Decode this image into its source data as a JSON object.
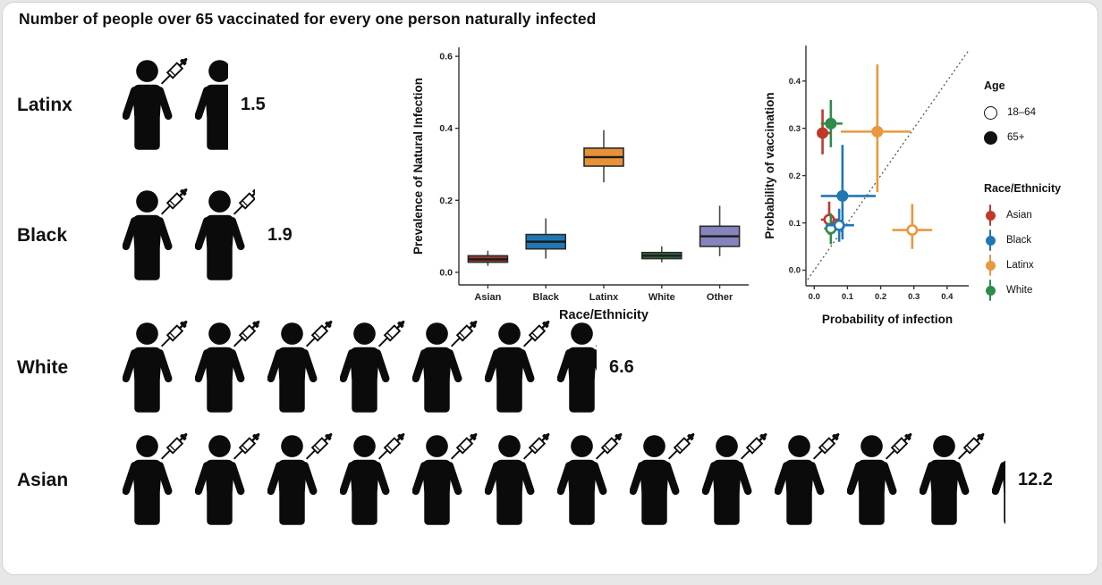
{
  "title": "Number of people over 65 vaccinated for every one person naturally infected",
  "pictogram": {
    "rows": [
      {
        "label": "Latinx",
        "value": "1.5",
        "count": 1.5
      },
      {
        "label": "Black",
        "value": "1.9",
        "count": 1.9
      },
      {
        "label": "White",
        "value": "6.6",
        "count": 6.6
      },
      {
        "label": "Asian",
        "value": "12.2",
        "count": 12.2
      }
    ]
  },
  "colors": {
    "box": {
      "Asian": "#963c2c",
      "Black": "#2077b4",
      "Latinx": "#e89138",
      "White": "#2e6b40",
      "Other": "#8784bd"
    },
    "scatter": {
      "Asian": "#c0392b",
      "Black": "#2077b4",
      "Latinx": "#e9983f",
      "White": "#2e8b4a"
    },
    "axis": "#333333",
    "whisker": "#4a4a4a",
    "identity_line": "#555555"
  },
  "chart_data": [
    {
      "type": "box",
      "title": "",
      "xlabel": "Race/Ethnicity",
      "ylabel": "Prevalence of Natural Infection",
      "ylim": [
        0,
        0.6
      ],
      "yticks": [
        0.0,
        0.2,
        0.4,
        0.6
      ],
      "categories": [
        "Asian",
        "Black",
        "Latinx",
        "White",
        "Other"
      ],
      "boxes": [
        {
          "category": "Asian",
          "whisker_low": 0.018,
          "q1": 0.028,
          "median": 0.036,
          "q3": 0.046,
          "whisker_high": 0.06
        },
        {
          "category": "Black",
          "whisker_low": 0.038,
          "q1": 0.065,
          "median": 0.085,
          "q3": 0.105,
          "whisker_high": 0.15
        },
        {
          "category": "Latinx",
          "whisker_low": 0.25,
          "q1": 0.295,
          "median": 0.32,
          "q3": 0.345,
          "whisker_high": 0.395
        },
        {
          "category": "White",
          "whisker_low": 0.028,
          "q1": 0.038,
          "median": 0.046,
          "q3": 0.055,
          "whisker_high": 0.072
        },
        {
          "category": "Other",
          "whisker_low": 0.045,
          "q1": 0.072,
          "median": 0.1,
          "q3": 0.128,
          "whisker_high": 0.185
        }
      ]
    },
    {
      "type": "scatter",
      "title": "",
      "xlabel": "Probability of infection",
      "ylabel": "Probability of vaccination",
      "xticks": [
        0.0,
        0.1,
        0.2,
        0.3,
        0.4
      ],
      "yticks": [
        0.0,
        0.1,
        0.2,
        0.3,
        0.4
      ],
      "identity_line": true,
      "points": [
        {
          "race": "Asian",
          "age": "65+",
          "filled": true,
          "x": 0.025,
          "y": 0.29,
          "xlo": 0.01,
          "xhi": 0.05,
          "ylo": 0.245,
          "yhi": 0.34
        },
        {
          "race": "White",
          "age": "65+",
          "filled": true,
          "x": 0.05,
          "y": 0.31,
          "xlo": 0.02,
          "xhi": 0.085,
          "ylo": 0.26,
          "yhi": 0.36
        },
        {
          "race": "Latinx",
          "age": "65+",
          "filled": true,
          "x": 0.19,
          "y": 0.293,
          "xlo": 0.08,
          "xhi": 0.29,
          "ylo": 0.165,
          "yhi": 0.435
        },
        {
          "race": "Black",
          "age": "65+",
          "filled": true,
          "x": 0.085,
          "y": 0.157,
          "xlo": 0.02,
          "xhi": 0.185,
          "ylo": 0.065,
          "yhi": 0.265
        },
        {
          "race": "Asian",
          "age": "18-64",
          "filled": false,
          "x": 0.045,
          "y": 0.107,
          "xlo": 0.02,
          "xhi": 0.075,
          "ylo": 0.075,
          "yhi": 0.145
        },
        {
          "race": "White",
          "age": "18-64",
          "filled": false,
          "x": 0.05,
          "y": 0.088,
          "xlo": 0.03,
          "xhi": 0.075,
          "ylo": 0.055,
          "yhi": 0.12
        },
        {
          "race": "Black",
          "age": "18-64",
          "filled": false,
          "x": 0.075,
          "y": 0.095,
          "xlo": 0.035,
          "xhi": 0.12,
          "ylo": 0.06,
          "yhi": 0.13
        },
        {
          "race": "Latinx",
          "age": "18-64",
          "filled": false,
          "x": 0.295,
          "y": 0.085,
          "xlo": 0.235,
          "xhi": 0.355,
          "ylo": 0.045,
          "yhi": 0.14
        }
      ]
    }
  ],
  "legend": {
    "age": {
      "title": "Age",
      "items": [
        {
          "label": "18–64",
          "filled": false
        },
        {
          "label": "65+",
          "filled": true
        }
      ]
    },
    "race": {
      "title": "Race/Ethnicity",
      "items": [
        {
          "label": "Asian"
        },
        {
          "label": "Black"
        },
        {
          "label": "Latinx"
        },
        {
          "label": "White"
        }
      ]
    }
  }
}
